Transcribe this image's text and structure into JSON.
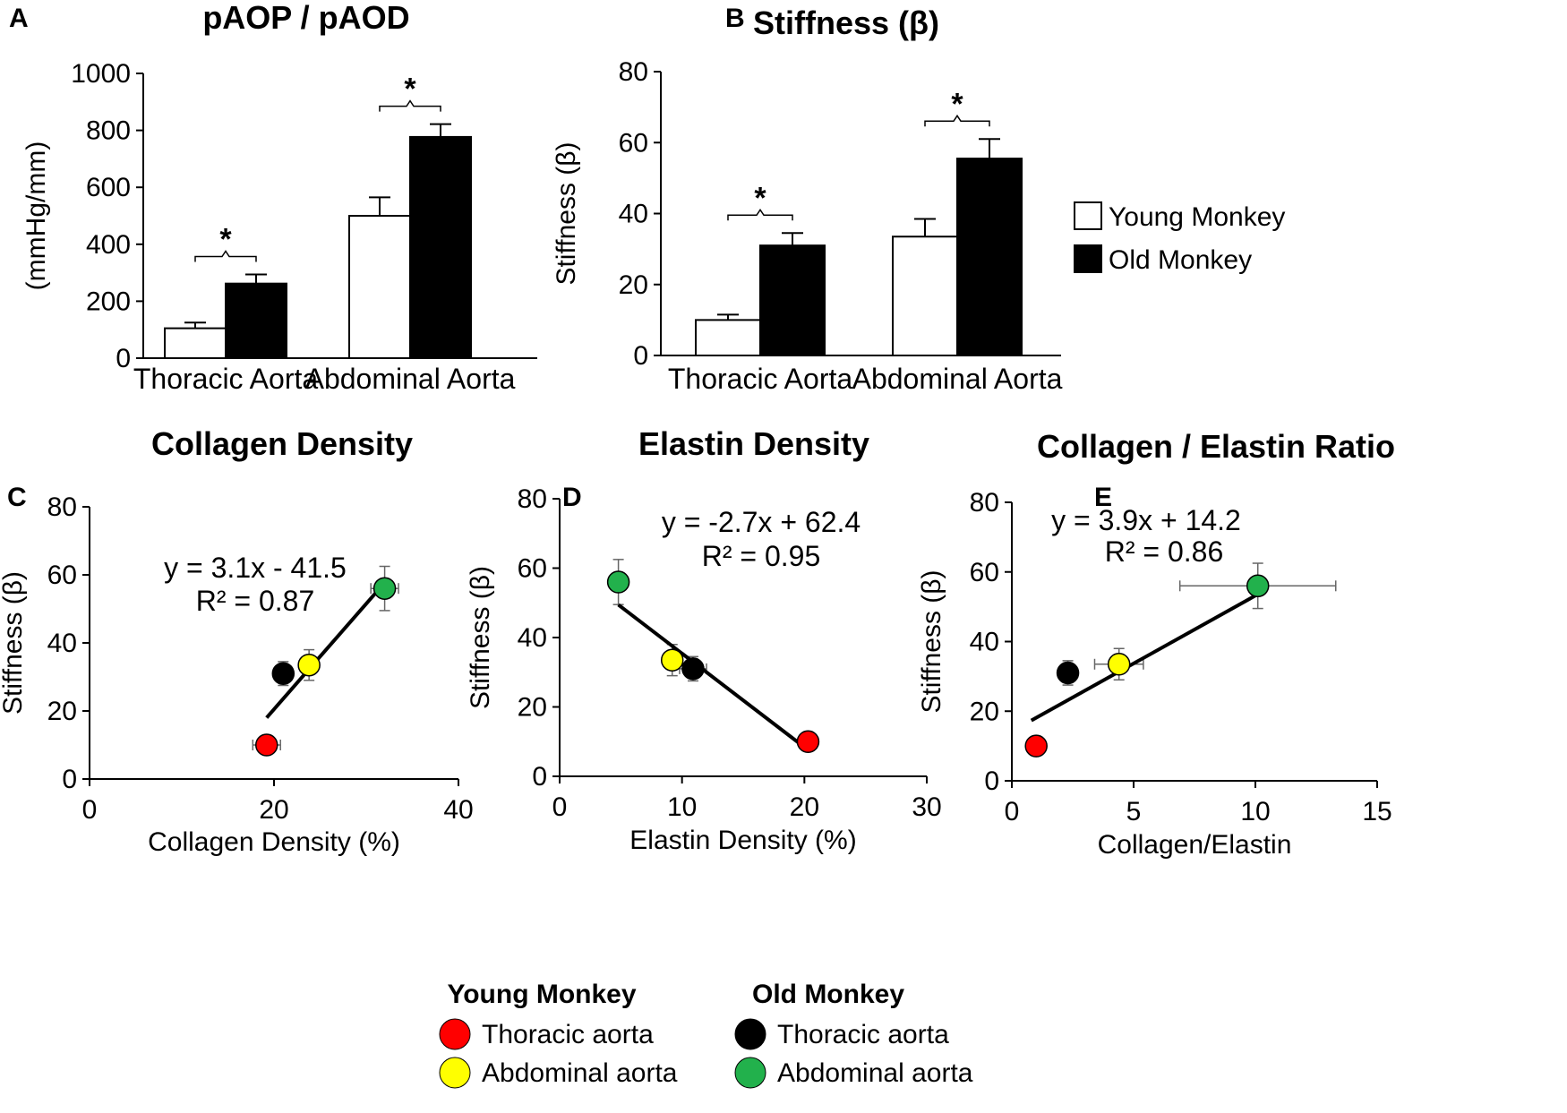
{
  "chart_data": [
    {
      "panel": "A",
      "type": "bar",
      "title": "pAOP / pAOD",
      "xlabel": "",
      "ylabel": "(mmHg/mm)",
      "categories": [
        "Thoracic Aorta",
        "Abdominal Aorta"
      ],
      "series": [
        {
          "name": "Young Monkey",
          "color": "#ffffff",
          "values": [
            105,
            500
          ],
          "errors": [
            20,
            65
          ]
        },
        {
          "name": "Old Monkey",
          "color": "#000000",
          "values": [
            262,
            777
          ],
          "errors": [
            32,
            45
          ]
        }
      ],
      "ylim": [
        0,
        1000
      ],
      "yticks": [
        0,
        200,
        400,
        600,
        800,
        1000
      ],
      "significance": [
        "*",
        "*"
      ]
    },
    {
      "panel": "B",
      "type": "bar",
      "title": "Stiffness (β)",
      "xlabel": "",
      "ylabel": "Stiffness (β)",
      "categories": [
        "Thoracic Aorta",
        "Abdominal Aorta"
      ],
      "series": [
        {
          "name": "Young Monkey",
          "color": "#ffffff",
          "values": [
            10,
            33.5
          ],
          "errors": [
            1.5,
            5
          ]
        },
        {
          "name": "Old Monkey",
          "color": "#000000",
          "values": [
            31,
            55.5
          ],
          "errors": [
            3.5,
            5.5
          ]
        }
      ],
      "ylim": [
        0,
        80
      ],
      "yticks": [
        0,
        20,
        40,
        60,
        80
      ],
      "significance": [
        "*",
        "*"
      ],
      "legend": [
        "Young Monkey",
        "Old Monkey"
      ]
    },
    {
      "panel": "C",
      "type": "scatter",
      "title": "Collagen Density",
      "xlabel": "Collagen Density (%)",
      "ylabel": "Stiffness (β)",
      "xlim": [
        0,
        40
      ],
      "xticks": [
        0,
        20,
        40
      ],
      "ylim": [
        0,
        80
      ],
      "yticks": [
        0,
        20,
        40,
        60,
        80
      ],
      "points": [
        {
          "group": "Young Monkey",
          "label": "Thoracic aorta",
          "color": "#ff0000",
          "x": 19.2,
          "y": 10,
          "xerr": 1.5,
          "yerr": 1.5
        },
        {
          "group": "Old Monkey",
          "label": "Thoracic aorta",
          "color": "#000000",
          "x": 21.0,
          "y": 31,
          "xerr": 0.6,
          "yerr": 3.5
        },
        {
          "group": "Young Monkey",
          "label": "Abdominal aorta",
          "color": "#ffff00",
          "x": 23.8,
          "y": 33.5,
          "xerr": 1.0,
          "yerr": 4.5
        },
        {
          "group": "Old Monkey",
          "label": "Abdominal aorta",
          "color": "#22b14c",
          "x": 32.0,
          "y": 56,
          "xerr": 1.5,
          "yerr": 6.5
        }
      ],
      "trendline": {
        "slope": 3.1,
        "intercept": -41.5,
        "x_range": [
          19.2,
          32.0
        ]
      },
      "equation": "y = 3.1x - 41.5",
      "r2": "R² = 0.87"
    },
    {
      "panel": "D",
      "type": "scatter",
      "title": "Elastin Density",
      "xlabel": "Elastin Density (%)",
      "ylabel": "Stiffness (β)",
      "xlim": [
        0,
        30
      ],
      "xticks": [
        0,
        10,
        20,
        30
      ],
      "ylim": [
        0,
        80
      ],
      "yticks": [
        0,
        20,
        40,
        60,
        80
      ],
      "points": [
        {
          "group": "Old Monkey",
          "label": "Abdominal aorta",
          "color": "#22b14c",
          "x": 4.8,
          "y": 56,
          "xerr": 0.6,
          "yerr": 6.5
        },
        {
          "group": "Young Monkey",
          "label": "Abdominal aorta",
          "color": "#ffff00",
          "x": 9.2,
          "y": 33.5,
          "xerr": 0.6,
          "yerr": 4.5
        },
        {
          "group": "Old Monkey",
          "label": "Thoracic aorta",
          "color": "#000000",
          "x": 10.9,
          "y": 31,
          "xerr": 1.1,
          "yerr": 3.5
        },
        {
          "group": "Young Monkey",
          "label": "Thoracic aorta",
          "color": "#ff0000",
          "x": 20.3,
          "y": 10,
          "xerr": 0.2,
          "yerr": 1.0
        }
      ],
      "trendline": {
        "slope": -2.7,
        "intercept": 62.4,
        "x_range": [
          4.8,
          20.3
        ]
      },
      "equation": "y = -2.7x + 62.4",
      "r2": "R² = 0.95"
    },
    {
      "panel": "E",
      "type": "scatter",
      "title": "Collagen / Elastin Ratio",
      "xlabel": "Collagen/Elastin",
      "ylabel": "Stiffness (β)",
      "xlim": [
        0,
        15
      ],
      "xticks": [
        0,
        5,
        10,
        15
      ],
      "ylim": [
        0,
        80
      ],
      "yticks": [
        0,
        20,
        40,
        60,
        80
      ],
      "points": [
        {
          "group": "Young Monkey",
          "label": "Thoracic aorta",
          "color": "#ff0000",
          "x": 1.0,
          "y": 10,
          "xerr": 0.1,
          "yerr": 1.0
        },
        {
          "group": "Old Monkey",
          "label": "Thoracic aorta",
          "color": "#000000",
          "x": 2.3,
          "y": 31,
          "xerr": 0.2,
          "yerr": 3.5
        },
        {
          "group": "Young Monkey",
          "label": "Abdominal aorta",
          "color": "#ffff00",
          "x": 4.4,
          "y": 33.5,
          "xerr": 1.0,
          "yerr": 4.5
        },
        {
          "group": "Old Monkey",
          "label": "Abdominal aorta",
          "color": "#22b14c",
          "x": 10.1,
          "y": 56,
          "xerr": 3.2,
          "yerr": 6.5
        }
      ],
      "trendline": {
        "slope": 3.9,
        "intercept": 14.2,
        "x_range": [
          0.8,
          10.1
        ]
      },
      "equation": "y = 3.9x + 14.2",
      "r2": "R² = 0.86"
    }
  ],
  "legend_bottom": {
    "groups": [
      {
        "title": "Young Monkey",
        "items": [
          {
            "label": "Thoracic aorta",
            "color": "#ff0000"
          },
          {
            "label": "Abdominal aorta",
            "color": "#ffff00"
          }
        ]
      },
      {
        "title": "Old Monkey",
        "items": [
          {
            "label": "Thoracic aorta",
            "color": "#000000"
          },
          {
            "label": "Abdominal aorta",
            "color": "#22b14c"
          }
        ]
      }
    ]
  }
}
